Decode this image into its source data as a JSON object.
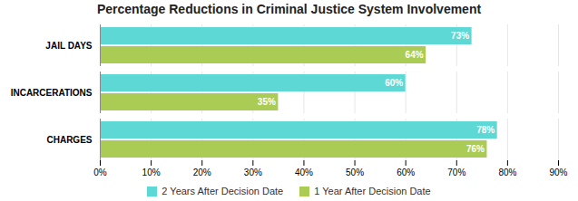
{
  "chart_data": {
    "type": "bar",
    "orientation": "horizontal",
    "title": "Percentage Reductions in Criminal Justice System Involvement",
    "categories": [
      "CHARGES",
      "INCARCERATIONS",
      "JAIL DAYS"
    ],
    "series": [
      {
        "name": "2 Years After Decision Date",
        "color": "#5DD8D5",
        "values": [
          78,
          60,
          73
        ],
        "value_labels": [
          "78%",
          "60%",
          "73%"
        ]
      },
      {
        "name": "1 Year After Decision Date",
        "color": "#AACC55",
        "values": [
          76,
          35,
          64
        ],
        "value_labels": [
          "76%",
          "35%",
          "64%"
        ]
      }
    ],
    "xlim": [
      0,
      90
    ],
    "xticks": [
      {
        "value": 0,
        "label": "0%"
      },
      {
        "value": 10,
        "label": "10%"
      },
      {
        "value": 20,
        "label": "20%"
      },
      {
        "value": 30,
        "label": "30%"
      },
      {
        "value": 40,
        "label": "40%"
      },
      {
        "value": 50,
        "label": "50%"
      },
      {
        "value": 60,
        "label": "60%"
      },
      {
        "value": 70,
        "label": "70%"
      },
      {
        "value": 80,
        "label": "80%"
      },
      {
        "value": 90,
        "label": "90%"
      }
    ],
    "grid": true,
    "data_labels": true,
    "legend": "bottom"
  }
}
